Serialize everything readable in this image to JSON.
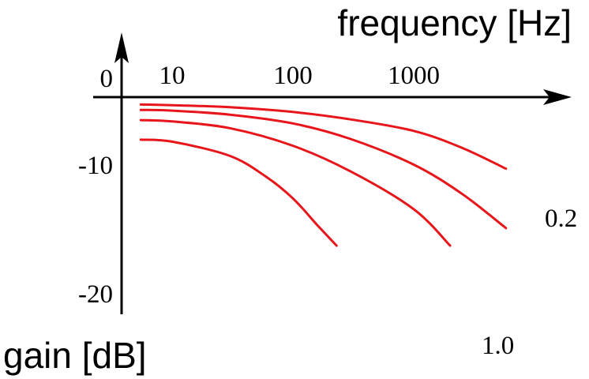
{
  "chart_data": {
    "type": "line",
    "xlabel": "frequency [Hz]",
    "ylabel": "gain [dB]",
    "x_scale": "log",
    "x_ticks": [
      {
        "value": 10,
        "label": "10"
      },
      {
        "value": 100,
        "label": "100"
      },
      {
        "value": 1000,
        "label": "1000"
      }
    ],
    "y_ticks": [
      {
        "value": 0,
        "label": "0"
      },
      {
        "value": -10,
        "label": "-10"
      },
      {
        "value": -20,
        "label": "-20"
      }
    ],
    "xlim": [
      3,
      10000
    ],
    "ylim": [
      -22,
      0
    ],
    "grid": false,
    "curve_color": "#e8161b",
    "series": [
      {
        "label": "0.2",
        "points": [
          [
            5.5,
            -1.1
          ],
          [
            10,
            -1.2
          ],
          [
            30,
            -1.5
          ],
          [
            100,
            -2.2
          ],
          [
            300,
            -3.3
          ],
          [
            1000,
            -5.0
          ],
          [
            2500,
            -7.5
          ],
          [
            5800,
            -10.6
          ]
        ]
      },
      {
        "points": [
          [
            5.5,
            -1.9
          ],
          [
            10,
            -2.0
          ],
          [
            30,
            -2.6
          ],
          [
            100,
            -3.9
          ],
          [
            300,
            -6.2
          ],
          [
            1000,
            -10.0
          ],
          [
            2500,
            -14.3
          ],
          [
            5800,
            -19.4
          ]
        ]
      },
      {
        "points": [
          [
            5.5,
            -3.4
          ],
          [
            10,
            -3.6
          ],
          [
            30,
            -4.6
          ],
          [
            100,
            -7.2
          ],
          [
            300,
            -11.0
          ],
          [
            1000,
            -16.6
          ],
          [
            2000,
            -22.0
          ]
        ]
      },
      {
        "label": "1.0",
        "points": [
          [
            5.5,
            -6.3
          ],
          [
            10,
            -6.6
          ],
          [
            30,
            -8.7
          ],
          [
            60,
            -11.8
          ],
          [
            100,
            -15.0
          ],
          [
            160,
            -19.0
          ],
          [
            230,
            -22.0
          ]
        ]
      }
    ]
  }
}
